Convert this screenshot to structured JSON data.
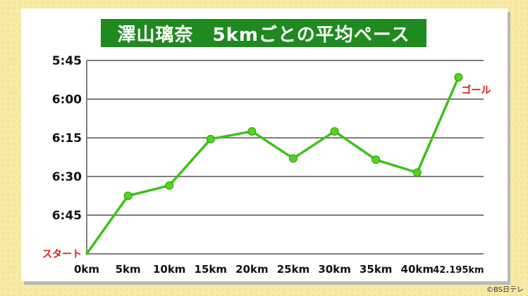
{
  "title": "澤山璃奈　5kmごとの平均ペース",
  "copyright": "©BS日テレ",
  "colors": {
    "title_bg": "#1f8a1f",
    "line": "#3cc21a",
    "point": "#56d21e",
    "label_red": "#d81b1b",
    "grid": "#7d7d7d"
  },
  "chart_data": {
    "type": "line",
    "categories": [
      "0km",
      "5km",
      "10km",
      "15km",
      "20km",
      "25km",
      "30km",
      "35km",
      "40km",
      "42.195km"
    ],
    "y_tick_labels": [
      "5:45",
      "6:00",
      "6:15",
      "6:30",
      "6:45"
    ],
    "y_ticks_sec": [
      345,
      360,
      375,
      390,
      405
    ],
    "ylim_sec": [
      345,
      420
    ],
    "y_inverted": true,
    "values_sec": [
      420,
      397.5,
      393.5,
      375.5,
      372.5,
      383,
      372.5,
      383.5,
      388.5,
      351.5
    ],
    "annotations": [
      {
        "index": 0,
        "text": "スタート"
      },
      {
        "index": 9,
        "text": "ゴール"
      }
    ],
    "grid": true
  }
}
